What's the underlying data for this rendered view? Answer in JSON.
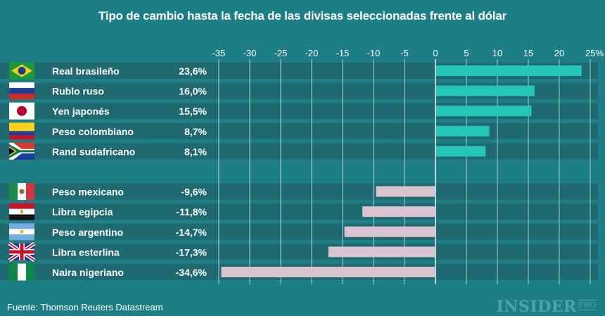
{
  "title": "Tipo de cambio hasta la fecha de las divisas seleccionadas frente al dólar",
  "source": "Fuente: Thomson Reuters Datastream",
  "logo": {
    "main": "INSIDER",
    "sub": "PRO"
  },
  "colors": {
    "background": "#1d7f85",
    "row": "#1f6a70",
    "positive": "#25c8b8",
    "negative": "#d9c3cf",
    "grid": "#a9d0d2"
  },
  "chart_data": {
    "type": "bar",
    "orientation": "horizontal",
    "xlim": [
      -35,
      25
    ],
    "ticks": [
      "-35",
      "-30",
      "-25",
      "-20",
      "-15",
      "-10",
      "-5",
      "0",
      "5",
      "10",
      "15",
      "20",
      "25%"
    ],
    "tick_values": [
      -35,
      -30,
      -25,
      -20,
      -15,
      -10,
      -5,
      0,
      5,
      10,
      15,
      20,
      25
    ],
    "grid": true,
    "categories": [
      "Real brasileño",
      "Rublo ruso",
      "Yen japonés",
      "Peso colombiano",
      "Rand sudafricano",
      "Peso mexicano",
      "Libra egipcia",
      "Peso argentino",
      "Libra esterlina",
      "Naira nigeriano"
    ],
    "flags": [
      "brazil-flag",
      "russia-flag",
      "japan-flag",
      "colombia-flag",
      "south-africa-flag",
      "mexico-flag",
      "egypt-flag",
      "argentina-flag",
      "uk-flag",
      "nigeria-flag"
    ],
    "values": [
      23.6,
      16.0,
      15.5,
      8.7,
      8.1,
      -9.6,
      -11.8,
      -14.7,
      -17.3,
      -34.6
    ],
    "labels": [
      "23,6%",
      "16,0%",
      "15,5%",
      "8,7%",
      "8,1%",
      "-9,6%",
      "-11,8%",
      "-14,7%",
      "-17,3%",
      "-34,6%"
    ]
  }
}
